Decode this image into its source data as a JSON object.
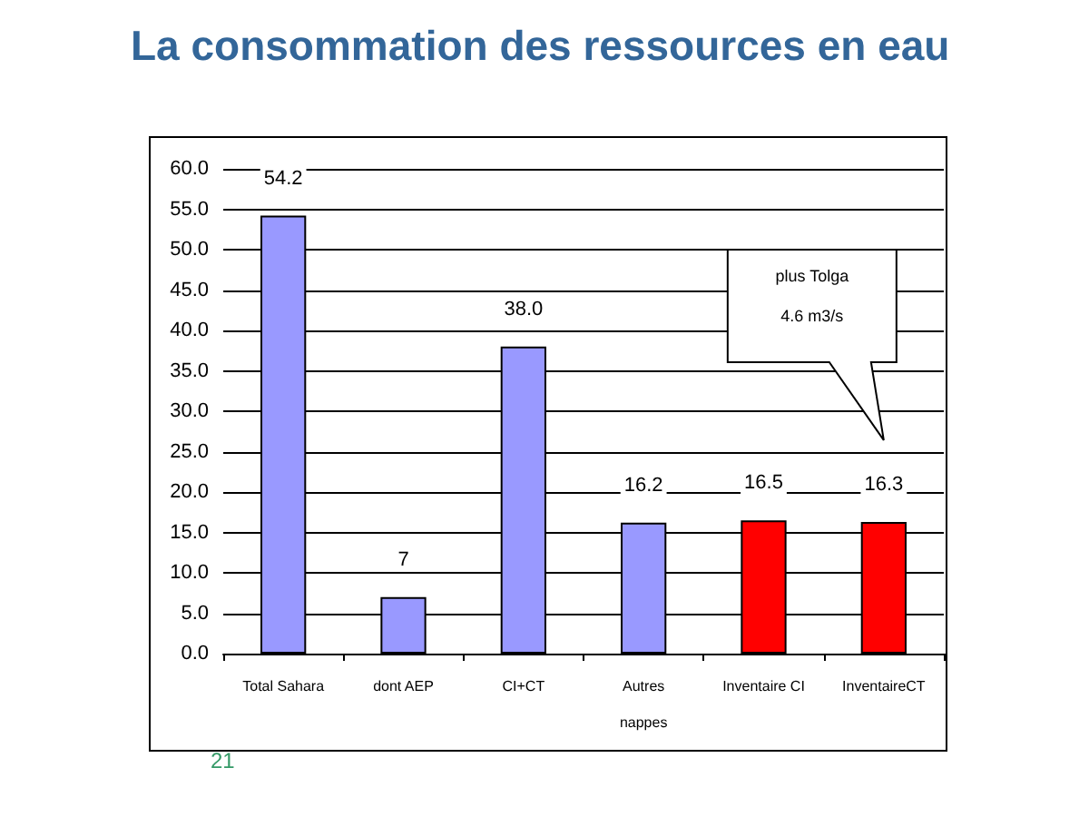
{
  "chart_data": {
    "type": "bar",
    "title": "La consommation des ressources en eau",
    "categories": [
      "Total Sahara",
      "dont AEP",
      "CI+CT",
      "Autres\nnappes",
      "Inventaire CI",
      "InventaireCT"
    ],
    "values": [
      54.2,
      7,
      38.0,
      16.2,
      16.5,
      16.3
    ],
    "colors": [
      "#9999ff",
      "#9999ff",
      "#9999ff",
      "#9999ff",
      "#ff0000",
      "#ff0000"
    ],
    "value_labels": [
      "54.2",
      "7",
      "38.0",
      "16.2",
      "16.5",
      "16.3"
    ],
    "ylim": [
      0,
      60
    ],
    "yticks": [
      {
        "value": 0,
        "label": "0.0"
      },
      {
        "value": 5,
        "label": "5.0"
      },
      {
        "value": 10,
        "label": "10.0"
      },
      {
        "value": 15,
        "label": "15.0"
      },
      {
        "value": 20,
        "label": "20.0"
      },
      {
        "value": 25,
        "label": "25.0"
      },
      {
        "value": 30,
        "label": "30.0"
      },
      {
        "value": 35,
        "label": "35.0"
      },
      {
        "value": 40,
        "label": "40.0"
      },
      {
        "value": 45,
        "label": "45.0"
      },
      {
        "value": 50,
        "label": "50.0"
      },
      {
        "value": 55,
        "label": "55.0"
      },
      {
        "value": 60,
        "label": "60.0"
      }
    ],
    "grid": "y",
    "annotations": [
      "plus Tolga 4.6 m3/s",
      "21"
    ]
  }
}
